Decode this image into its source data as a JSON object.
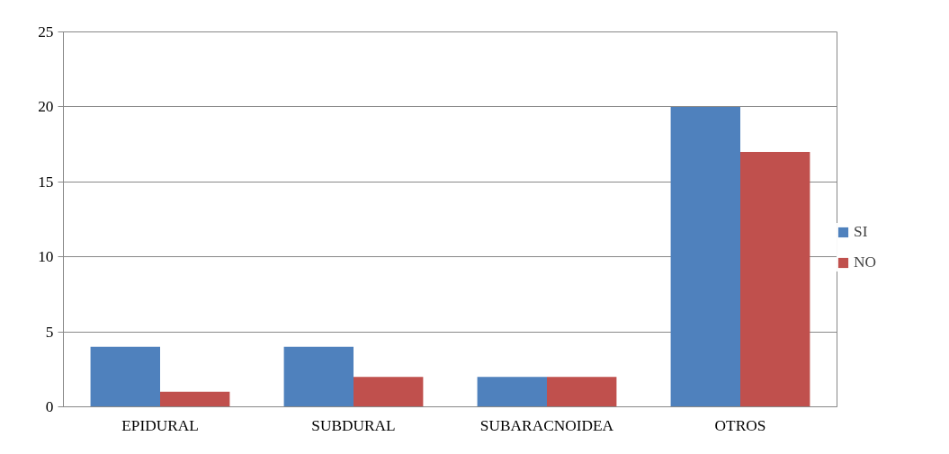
{
  "chart_data": {
    "type": "bar",
    "categories": [
      "EPIDURAL",
      "SUBDURAL",
      "SUBARACNOIDEA",
      "OTROS"
    ],
    "series": [
      {
        "name": "SI",
        "color": "#4f81bd",
        "values": [
          4,
          4,
          2,
          20
        ]
      },
      {
        "name": "NO",
        "color": "#c0504d",
        "values": [
          1,
          2,
          2,
          17
        ]
      }
    ],
    "ylim": [
      0,
      25
    ],
    "yticks": [
      0,
      5,
      10,
      15,
      20,
      25
    ],
    "grid": "y",
    "legend": "right"
  }
}
